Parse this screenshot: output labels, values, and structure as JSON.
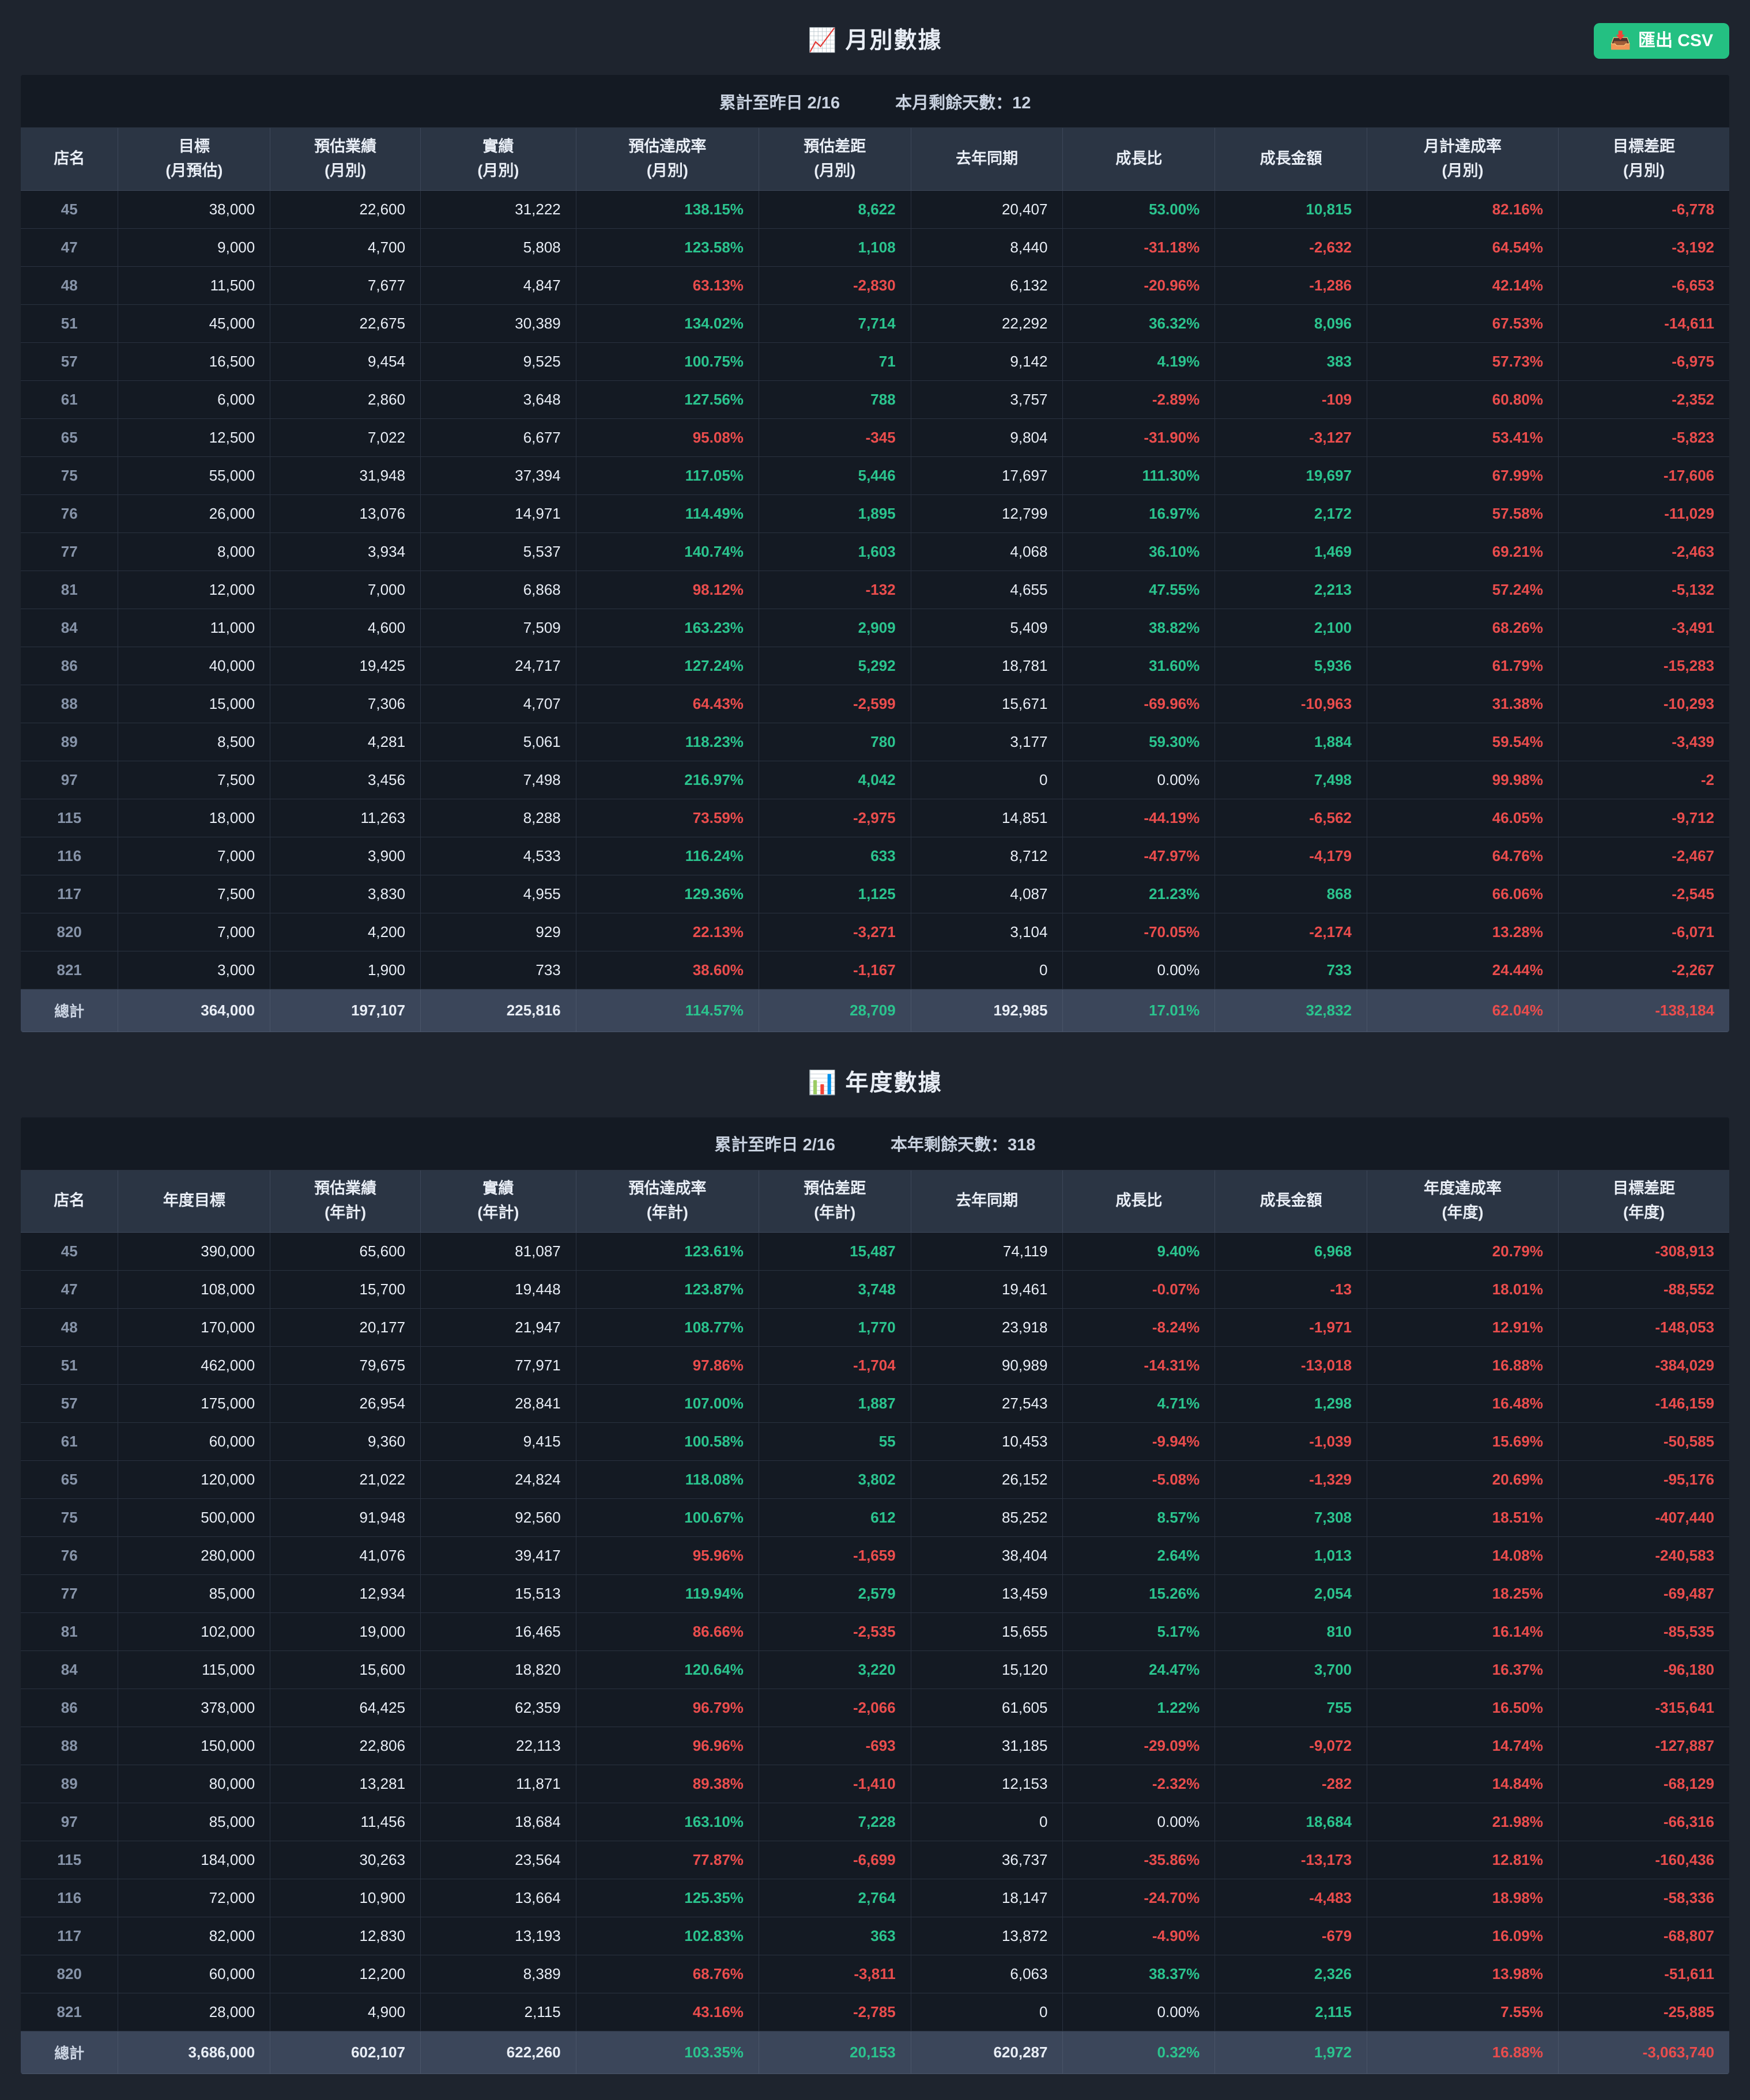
{
  "export_button": {
    "icon": "📥",
    "label": "匯出 CSV"
  },
  "column_rules": [
    "none",
    "none",
    "none",
    "none",
    "pct100",
    "sign",
    "none",
    "sign",
    "sign",
    "pct100",
    "sign"
  ],
  "colors": {
    "green": "#2bc48e",
    "red": "#ea4d4d",
    "button": "#24c082"
  },
  "tables": {
    "monthly": {
      "title": "月別數據",
      "title_icon": "📈",
      "status_left": "累計至昨日 2/16",
      "status_right": "本月剩餘天數：12",
      "headers": [
        "店名",
        "目標\n(月預估)",
        "預估業績\n(月別)",
        "實績\n(月別)",
        "預估達成率\n(月別)",
        "預估差距\n(月別)",
        "去年同期",
        "成長比",
        "成長金額",
        "月計達成率\n(月別)",
        "目標差距\n(月別)"
      ],
      "rows": [
        [
          "45",
          "38,000",
          "22,600",
          "31,222",
          "138.15%",
          "8,622",
          "20,407",
          "53.00%",
          "10,815",
          "82.16%",
          "-6,778"
        ],
        [
          "47",
          "9,000",
          "4,700",
          "5,808",
          "123.58%",
          "1,108",
          "8,440",
          "-31.18%",
          "-2,632",
          "64.54%",
          "-3,192"
        ],
        [
          "48",
          "11,500",
          "7,677",
          "4,847",
          "63.13%",
          "-2,830",
          "6,132",
          "-20.96%",
          "-1,286",
          "42.14%",
          "-6,653"
        ],
        [
          "51",
          "45,000",
          "22,675",
          "30,389",
          "134.02%",
          "7,714",
          "22,292",
          "36.32%",
          "8,096",
          "67.53%",
          "-14,611"
        ],
        [
          "57",
          "16,500",
          "9,454",
          "9,525",
          "100.75%",
          "71",
          "9,142",
          "4.19%",
          "383",
          "57.73%",
          "-6,975"
        ],
        [
          "61",
          "6,000",
          "2,860",
          "3,648",
          "127.56%",
          "788",
          "3,757",
          "-2.89%",
          "-109",
          "60.80%",
          "-2,352"
        ],
        [
          "65",
          "12,500",
          "7,022",
          "6,677",
          "95.08%",
          "-345",
          "9,804",
          "-31.90%",
          "-3,127",
          "53.41%",
          "-5,823"
        ],
        [
          "75",
          "55,000",
          "31,948",
          "37,394",
          "117.05%",
          "5,446",
          "17,697",
          "111.30%",
          "19,697",
          "67.99%",
          "-17,606"
        ],
        [
          "76",
          "26,000",
          "13,076",
          "14,971",
          "114.49%",
          "1,895",
          "12,799",
          "16.97%",
          "2,172",
          "57.58%",
          "-11,029"
        ],
        [
          "77",
          "8,000",
          "3,934",
          "5,537",
          "140.74%",
          "1,603",
          "4,068",
          "36.10%",
          "1,469",
          "69.21%",
          "-2,463"
        ],
        [
          "81",
          "12,000",
          "7,000",
          "6,868",
          "98.12%",
          "-132",
          "4,655",
          "47.55%",
          "2,213",
          "57.24%",
          "-5,132"
        ],
        [
          "84",
          "11,000",
          "4,600",
          "7,509",
          "163.23%",
          "2,909",
          "5,409",
          "38.82%",
          "2,100",
          "68.26%",
          "-3,491"
        ],
        [
          "86",
          "40,000",
          "19,425",
          "24,717",
          "127.24%",
          "5,292",
          "18,781",
          "31.60%",
          "5,936",
          "61.79%",
          "-15,283"
        ],
        [
          "88",
          "15,000",
          "7,306",
          "4,707",
          "64.43%",
          "-2,599",
          "15,671",
          "-69.96%",
          "-10,963",
          "31.38%",
          "-10,293"
        ],
        [
          "89",
          "8,500",
          "4,281",
          "5,061",
          "118.23%",
          "780",
          "3,177",
          "59.30%",
          "1,884",
          "59.54%",
          "-3,439"
        ],
        [
          "97",
          "7,500",
          "3,456",
          "7,498",
          "216.97%",
          "4,042",
          "0",
          "0.00%",
          "7,498",
          "99.98%",
          "-2"
        ],
        [
          "115",
          "18,000",
          "11,263",
          "8,288",
          "73.59%",
          "-2,975",
          "14,851",
          "-44.19%",
          "-6,562",
          "46.05%",
          "-9,712"
        ],
        [
          "116",
          "7,000",
          "3,900",
          "4,533",
          "116.24%",
          "633",
          "8,712",
          "-47.97%",
          "-4,179",
          "64.76%",
          "-2,467"
        ],
        [
          "117",
          "7,500",
          "3,830",
          "4,955",
          "129.36%",
          "1,125",
          "4,087",
          "21.23%",
          "868",
          "66.06%",
          "-2,545"
        ],
        [
          "820",
          "7,000",
          "4,200",
          "929",
          "22.13%",
          "-3,271",
          "3,104",
          "-70.05%",
          "-2,174",
          "13.28%",
          "-6,071"
        ],
        [
          "821",
          "3,000",
          "1,900",
          "733",
          "38.60%",
          "-1,167",
          "0",
          "0.00%",
          "733",
          "24.44%",
          "-2,267"
        ]
      ],
      "total": [
        "總計",
        "364,000",
        "197,107",
        "225,816",
        "114.57%",
        "28,709",
        "192,985",
        "17.01%",
        "32,832",
        "62.04%",
        "-138,184"
      ]
    },
    "annual": {
      "title": "年度數據",
      "title_icon": "📊",
      "status_left": "累計至昨日 2/16",
      "status_right": "本年剩餘天數：318",
      "headers": [
        "店名",
        "年度目標",
        "預估業績\n(年計)",
        "實績\n(年計)",
        "預估達成率\n(年計)",
        "預估差距\n(年計)",
        "去年同期",
        "成長比",
        "成長金額",
        "年度達成率\n(年度)",
        "目標差距\n(年度)"
      ],
      "rows": [
        [
          "45",
          "390,000",
          "65,600",
          "81,087",
          "123.61%",
          "15,487",
          "74,119",
          "9.40%",
          "6,968",
          "20.79%",
          "-308,913"
        ],
        [
          "47",
          "108,000",
          "15,700",
          "19,448",
          "123.87%",
          "3,748",
          "19,461",
          "-0.07%",
          "-13",
          "18.01%",
          "-88,552"
        ],
        [
          "48",
          "170,000",
          "20,177",
          "21,947",
          "108.77%",
          "1,770",
          "23,918",
          "-8.24%",
          "-1,971",
          "12.91%",
          "-148,053"
        ],
        [
          "51",
          "462,000",
          "79,675",
          "77,971",
          "97.86%",
          "-1,704",
          "90,989",
          "-14.31%",
          "-13,018",
          "16.88%",
          "-384,029"
        ],
        [
          "57",
          "175,000",
          "26,954",
          "28,841",
          "107.00%",
          "1,887",
          "27,543",
          "4.71%",
          "1,298",
          "16.48%",
          "-146,159"
        ],
        [
          "61",
          "60,000",
          "9,360",
          "9,415",
          "100.58%",
          "55",
          "10,453",
          "-9.94%",
          "-1,039",
          "15.69%",
          "-50,585"
        ],
        [
          "65",
          "120,000",
          "21,022",
          "24,824",
          "118.08%",
          "3,802",
          "26,152",
          "-5.08%",
          "-1,329",
          "20.69%",
          "-95,176"
        ],
        [
          "75",
          "500,000",
          "91,948",
          "92,560",
          "100.67%",
          "612",
          "85,252",
          "8.57%",
          "7,308",
          "18.51%",
          "-407,440"
        ],
        [
          "76",
          "280,000",
          "41,076",
          "39,417",
          "95.96%",
          "-1,659",
          "38,404",
          "2.64%",
          "1,013",
          "14.08%",
          "-240,583"
        ],
        [
          "77",
          "85,000",
          "12,934",
          "15,513",
          "119.94%",
          "2,579",
          "13,459",
          "15.26%",
          "2,054",
          "18.25%",
          "-69,487"
        ],
        [
          "81",
          "102,000",
          "19,000",
          "16,465",
          "86.66%",
          "-2,535",
          "15,655",
          "5.17%",
          "810",
          "16.14%",
          "-85,535"
        ],
        [
          "84",
          "115,000",
          "15,600",
          "18,820",
          "120.64%",
          "3,220",
          "15,120",
          "24.47%",
          "3,700",
          "16.37%",
          "-96,180"
        ],
        [
          "86",
          "378,000",
          "64,425",
          "62,359",
          "96.79%",
          "-2,066",
          "61,605",
          "1.22%",
          "755",
          "16.50%",
          "-315,641"
        ],
        [
          "88",
          "150,000",
          "22,806",
          "22,113",
          "96.96%",
          "-693",
          "31,185",
          "-29.09%",
          "-9,072",
          "14.74%",
          "-127,887"
        ],
        [
          "89",
          "80,000",
          "13,281",
          "11,871",
          "89.38%",
          "-1,410",
          "12,153",
          "-2.32%",
          "-282",
          "14.84%",
          "-68,129"
        ],
        [
          "97",
          "85,000",
          "11,456",
          "18,684",
          "163.10%",
          "7,228",
          "0",
          "0.00%",
          "18,684",
          "21.98%",
          "-66,316"
        ],
        [
          "115",
          "184,000",
          "30,263",
          "23,564",
          "77.87%",
          "-6,699",
          "36,737",
          "-35.86%",
          "-13,173",
          "12.81%",
          "-160,436"
        ],
        [
          "116",
          "72,000",
          "10,900",
          "13,664",
          "125.35%",
          "2,764",
          "18,147",
          "-24.70%",
          "-4,483",
          "18.98%",
          "-58,336"
        ],
        [
          "117",
          "82,000",
          "12,830",
          "13,193",
          "102.83%",
          "363",
          "13,872",
          "-4.90%",
          "-679",
          "16.09%",
          "-68,807"
        ],
        [
          "820",
          "60,000",
          "12,200",
          "8,389",
          "68.76%",
          "-3,811",
          "6,063",
          "38.37%",
          "2,326",
          "13.98%",
          "-51,611"
        ],
        [
          "821",
          "28,000",
          "4,900",
          "2,115",
          "43.16%",
          "-2,785",
          "0",
          "0.00%",
          "2,115",
          "7.55%",
          "-25,885"
        ]
      ],
      "total": [
        "總計",
        "3,686,000",
        "602,107",
        "622,260",
        "103.35%",
        "20,153",
        "620,287",
        "0.32%",
        "1,972",
        "16.88%",
        "-3,063,740"
      ]
    }
  }
}
